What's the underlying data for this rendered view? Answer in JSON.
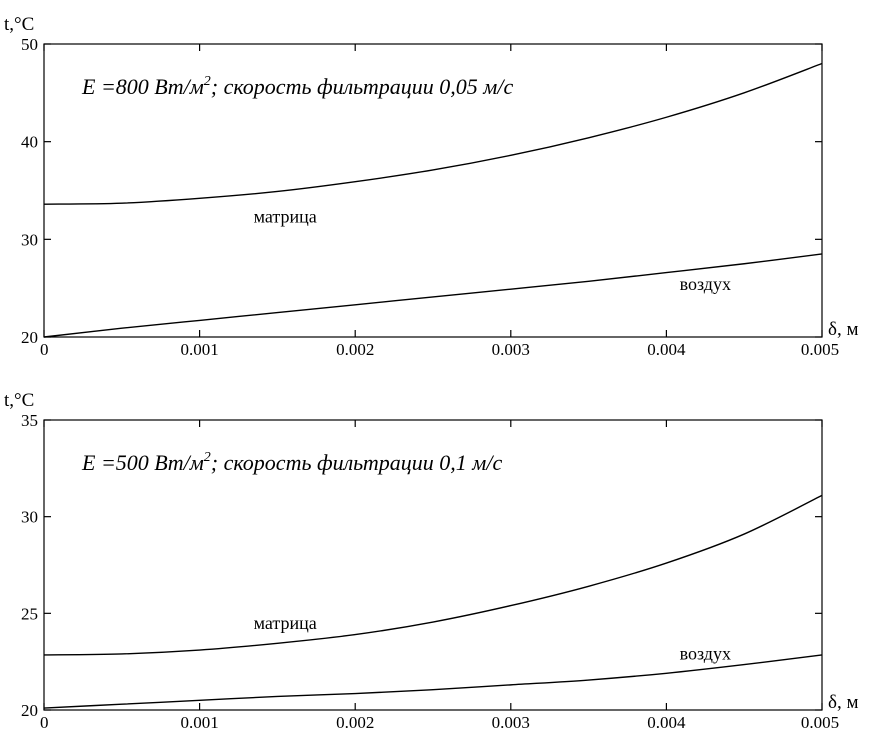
{
  "chart_data": [
    {
      "type": "line",
      "annotation": {
        "prefix": "E =800 Bт/м",
        "sup": "2",
        "suffix": "; скорость фильтрации 0,05 м/с"
      },
      "xlabel": "δ, м",
      "ylabel": "t,°C",
      "xlim": [
        0,
        0.005
      ],
      "ylim": [
        20,
        50
      ],
      "xticks": [
        0,
        0.001,
        0.002,
        0.003,
        0.004,
        0.005
      ],
      "xtick_labels": [
        "0",
        "0.001",
        "0.002",
        "0.003",
        "0.004",
        "0.005"
      ],
      "yticks": [
        20,
        30,
        40,
        50
      ],
      "ytick_labels": [
        "20",
        "30",
        "40",
        "50"
      ],
      "grid": false,
      "series": [
        {
          "name": "матрица",
          "label_at": [
            0.00155,
            31.7
          ],
          "x": [
            0,
            0.0005,
            0.001,
            0.0015,
            0.002,
            0.0025,
            0.003,
            0.0035,
            0.004,
            0.0045,
            0.005
          ],
          "y": [
            33.6,
            33.7,
            34.2,
            34.9,
            35.9,
            37.1,
            38.6,
            40.4,
            42.5,
            45.0,
            48.0
          ]
        },
        {
          "name": "воздух",
          "label_at": [
            0.00425,
            24.8
          ],
          "x": [
            0,
            0.0005,
            0.001,
            0.0015,
            0.002,
            0.0025,
            0.003,
            0.0035,
            0.004,
            0.0045,
            0.005
          ],
          "y": [
            20.0,
            20.9,
            21.7,
            22.5,
            23.3,
            24.1,
            24.9,
            25.7,
            26.6,
            27.5,
            28.5
          ]
        }
      ]
    },
    {
      "type": "line",
      "annotation": {
        "prefix": "E =500 Bт/м",
        "sup": "2",
        "suffix": "; скорость фильтрации 0,1 м/с"
      },
      "xlabel": "δ, м",
      "ylabel": "t,°C",
      "xlim": [
        0,
        0.005
      ],
      "ylim": [
        20,
        35
      ],
      "xticks": [
        0,
        0.001,
        0.002,
        0.003,
        0.004,
        0.005
      ],
      "xtick_labels": [
        "0",
        "0.001",
        "0.002",
        "0.003",
        "0.004",
        "0.005"
      ],
      "yticks": [
        20,
        25,
        30,
        35
      ],
      "ytick_labels": [
        "20",
        "25",
        "30",
        "35"
      ],
      "grid": false,
      "series": [
        {
          "name": "матрица",
          "label_at": [
            0.00155,
            24.2
          ],
          "x": [
            0,
            0.0005,
            0.001,
            0.0015,
            0.002,
            0.0025,
            0.003,
            0.0035,
            0.004,
            0.0045,
            0.005
          ],
          "y": [
            22.85,
            22.9,
            23.1,
            23.45,
            23.9,
            24.55,
            25.4,
            26.4,
            27.6,
            29.1,
            31.1
          ]
        },
        {
          "name": "воздух",
          "label_at": [
            0.00425,
            22.6
          ],
          "x": [
            0,
            0.0005,
            0.001,
            0.0015,
            0.002,
            0.0025,
            0.003,
            0.0035,
            0.004,
            0.0045,
            0.005
          ],
          "y": [
            20.1,
            20.3,
            20.5,
            20.7,
            20.85,
            21.05,
            21.3,
            21.55,
            21.9,
            22.35,
            22.85
          ]
        }
      ]
    }
  ]
}
